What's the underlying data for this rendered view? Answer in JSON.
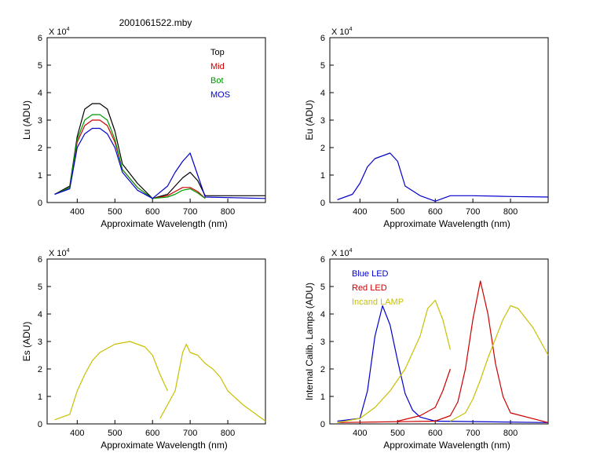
{
  "figure": {
    "title": "2001061522.mby",
    "exponent_base": "X 10",
    "exponent_power": "4"
  },
  "colors": {
    "black": "#000000",
    "red": "#cc0000",
    "green": "#009900",
    "blue": "#0000cc",
    "yellow": "#c8c000"
  },
  "chart_data": [
    {
      "type": "line",
      "id": "lu",
      "ylabel": "Lu (ADU)",
      "xlabel": "Approximate Wavelength (nm)",
      "xlim": [
        320,
        900
      ],
      "ylim": [
        0,
        6
      ],
      "xticks": [
        400,
        500,
        600,
        700,
        800
      ],
      "yticks": [
        0,
        1,
        2,
        3,
        4,
        5,
        6
      ],
      "legend": [
        {
          "name": "Top",
          "color": "#000000"
        },
        {
          "name": "Mid",
          "color": "#cc0000"
        },
        {
          "name": "Bot",
          "color": "#009900"
        },
        {
          "name": "MOS",
          "color": "#0000cc"
        }
      ],
      "series": [
        {
          "name": "Top",
          "color": "#000000",
          "x": [
            340,
            380,
            400,
            420,
            440,
            460,
            480,
            500,
            520,
            560,
            600,
            640,
            660,
            680,
            700,
            720,
            740,
            900
          ],
          "y": [
            0.3,
            0.6,
            2.4,
            3.4,
            3.6,
            3.6,
            3.4,
            2.6,
            1.4,
            0.7,
            0.15,
            0.3,
            0.6,
            0.9,
            1.1,
            0.8,
            0.25,
            0.25
          ]
        },
        {
          "name": "Mid",
          "color": "#cc0000",
          "x": [
            340,
            380,
            400,
            420,
            440,
            460,
            480,
            500,
            520,
            560,
            600,
            640,
            660,
            680,
            700,
            720,
            740
          ],
          "y": [
            0.3,
            0.55,
            2.2,
            2.8,
            3.0,
            3.0,
            2.8,
            2.2,
            1.2,
            0.55,
            0.15,
            0.25,
            0.4,
            0.55,
            0.55,
            0.4,
            0.15
          ]
        },
        {
          "name": "Bot",
          "color": "#009900",
          "x": [
            340,
            380,
            400,
            420,
            440,
            460,
            480,
            500,
            520,
            560,
            600,
            640,
            660,
            680,
            700,
            720,
            740
          ],
          "y": [
            0.3,
            0.55,
            2.3,
            3.0,
            3.2,
            3.2,
            3.0,
            2.3,
            1.2,
            0.55,
            0.15,
            0.2,
            0.3,
            0.45,
            0.5,
            0.35,
            0.15
          ]
        },
        {
          "name": "MOS",
          "color": "#0000cc",
          "x": [
            340,
            380,
            400,
            420,
            440,
            460,
            480,
            500,
            520,
            560,
            600,
            640,
            660,
            680,
            700,
            720,
            740,
            900
          ],
          "y": [
            0.3,
            0.5,
            2.0,
            2.5,
            2.7,
            2.7,
            2.5,
            2.0,
            1.1,
            0.45,
            0.15,
            0.6,
            1.1,
            1.5,
            1.8,
            1.0,
            0.2,
            0.15
          ]
        }
      ]
    },
    {
      "type": "line",
      "id": "eu",
      "ylabel": "Eu  (ADU)",
      "xlabel": "Approximate Wavelength (nm)",
      "xlim": [
        320,
        900
      ],
      "ylim": [
        0,
        6
      ],
      "xticks": [
        400,
        500,
        600,
        700,
        800
      ],
      "yticks": [
        0,
        1,
        2,
        3,
        4,
        5,
        6
      ],
      "series": [
        {
          "name": "",
          "color": "#0000cc",
          "x": [
            340,
            380,
            400,
            420,
            440,
            460,
            480,
            500,
            520,
            560,
            600,
            620,
            640,
            700,
            800,
            900
          ],
          "y": [
            0.1,
            0.3,
            0.7,
            1.3,
            1.6,
            1.7,
            1.8,
            1.5,
            0.6,
            0.25,
            0.05,
            0.15,
            0.25,
            0.25,
            0.22,
            0.2
          ]
        }
      ]
    },
    {
      "type": "line",
      "id": "es",
      "ylabel": "Es  (ADU)",
      "xlabel": "Approximate Wavelength (nm)",
      "xlim": [
        320,
        900
      ],
      "ylim": [
        0,
        6
      ],
      "xticks": [
        400,
        500,
        600,
        700,
        800
      ],
      "yticks": [
        0,
        1,
        2,
        3,
        4,
        5,
        6
      ],
      "series": [
        {
          "name": "",
          "color": "#c8c000",
          "x": [
            340,
            380,
            400,
            420,
            440,
            460,
            500,
            540,
            580,
            600,
            620,
            640
          ],
          "y": [
            0.15,
            0.35,
            1.2,
            1.8,
            2.3,
            2.6,
            2.9,
            3.0,
            2.8,
            2.5,
            1.8,
            1.2
          ]
        },
        {
          "name": "",
          "color": "#c8c000",
          "x": [
            620,
            660,
            680,
            690,
            700,
            720,
            740,
            760,
            780,
            800,
            840,
            880,
            900
          ],
          "y": [
            0.2,
            1.2,
            2.6,
            2.9,
            2.6,
            2.5,
            2.2,
            2.0,
            1.7,
            1.2,
            0.7,
            0.3,
            0.1
          ]
        }
      ]
    },
    {
      "type": "line",
      "id": "lamps",
      "ylabel": "Internal Calib. Lamps (ADU)",
      "xlabel": "Approximate Wavelength (nm)",
      "xlim": [
        320,
        900
      ],
      "ylim": [
        0,
        6
      ],
      "xticks": [
        400,
        500,
        600,
        700,
        800
      ],
      "yticks": [
        0,
        1,
        2,
        3,
        4,
        5,
        6
      ],
      "legend": [
        {
          "name": "Blue LED",
          "color": "#0000cc"
        },
        {
          "name": "Red LED",
          "color": "#cc0000"
        },
        {
          "name": "Incand LAMP",
          "color": "#c8c000"
        }
      ],
      "series": [
        {
          "name": "Blue LED",
          "color": "#0000cc",
          "x": [
            340,
            400,
            420,
            440,
            460,
            480,
            500,
            520,
            540,
            560,
            600,
            900
          ],
          "y": [
            0.1,
            0.2,
            1.2,
            3.2,
            4.3,
            3.6,
            2.3,
            1.1,
            0.5,
            0.25,
            0.1,
            0.05
          ]
        },
        {
          "name": "Red LED",
          "color": "#cc0000",
          "x": [
            340,
            600,
            640,
            660,
            680,
            700,
            720,
            740,
            760,
            780,
            800,
            900
          ],
          "y": [
            0.05,
            0.1,
            0.3,
            0.8,
            2.0,
            3.8,
            5.2,
            4.0,
            2.2,
            1.0,
            0.4,
            0.05
          ]
        },
        {
          "name": "Incand LAMP",
          "color": "#c8c000",
          "x": [
            340,
            400,
            440,
            480,
            520,
            560,
            580,
            600,
            620,
            640
          ],
          "y": [
            0.05,
            0.2,
            0.6,
            1.2,
            2.0,
            3.2,
            4.2,
            4.5,
            3.8,
            2.7
          ]
        },
        {
          "name": "Incand LAMP",
          "color": "#c8c000",
          "x": [
            640,
            680,
            700,
            720,
            740,
            760,
            780,
            800,
            820,
            860,
            900
          ],
          "y": [
            0.1,
            0.4,
            0.9,
            1.6,
            2.4,
            3.1,
            3.8,
            4.3,
            4.2,
            3.5,
            2.5
          ]
        },
        {
          "name": "Red LED",
          "color": "#cc0000",
          "x": [
            500,
            560,
            600,
            620,
            640
          ],
          "y": [
            0.1,
            0.3,
            0.6,
            1.2,
            2.0
          ]
        }
      ]
    }
  ]
}
